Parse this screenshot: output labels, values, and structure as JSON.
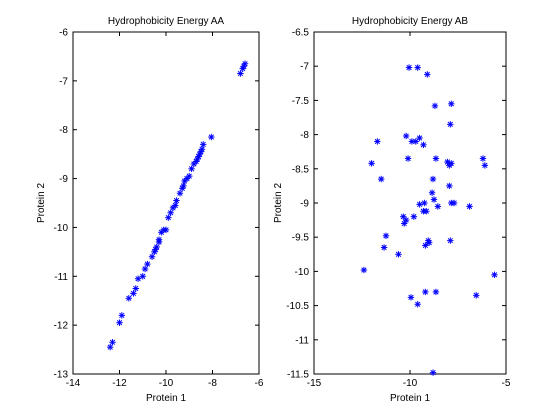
{
  "chart_data": [
    {
      "type": "scatter",
      "title": "Hydrophobicity Energy AA",
      "xlabel": "Protein 1",
      "ylabel": "Protein 2",
      "xlim": [
        -14,
        -6
      ],
      "ylim": [
        -13,
        -6
      ],
      "xticks": [
        "-14",
        "-12",
        "-10",
        "-8",
        "-6"
      ],
      "yticks": [
        "-13",
        "-12",
        "-11",
        "-10",
        "-9",
        "-8",
        "-7",
        "-6"
      ],
      "grid": false,
      "marker": "asterisk",
      "marker_color": "#0000ff",
      "series": [
        {
          "x": [
            -12.4,
            -12.3,
            -12.0,
            -11.9,
            -11.6,
            -11.4,
            -11.3,
            -11.2,
            -11.0,
            -10.9,
            -10.8,
            -10.6,
            -10.5,
            -10.45,
            -10.4,
            -10.3,
            -10.3,
            -10.2,
            -10.1,
            -10.0,
            -9.9,
            -9.8,
            -9.7,
            -9.6,
            -9.55,
            -9.4,
            -9.3,
            -9.25,
            -9.2,
            -9.1,
            -9.0,
            -8.9,
            -8.8,
            -8.7,
            -8.65,
            -8.6,
            -8.55,
            -8.5,
            -8.45,
            -8.4,
            -8.05,
            -6.8,
            -6.7,
            -6.65,
            -6.6
          ],
          "y": [
            -12.45,
            -12.35,
            -11.95,
            -11.8,
            -11.45,
            -11.35,
            -11.25,
            -11.05,
            -11.0,
            -10.85,
            -10.75,
            -10.6,
            -10.5,
            -10.45,
            -10.4,
            -10.3,
            -10.25,
            -10.1,
            -10.05,
            -10.05,
            -9.8,
            -9.7,
            -9.6,
            -9.55,
            -9.45,
            -9.3,
            -9.2,
            -9.15,
            -9.05,
            -9.0,
            -8.95,
            -8.8,
            -8.7,
            -8.65,
            -8.6,
            -8.55,
            -8.5,
            -8.45,
            -8.4,
            -8.3,
            -8.15,
            -6.85,
            -6.75,
            -6.7,
            -6.65
          ]
        }
      ]
    },
    {
      "type": "scatter",
      "title": "Hydrophobicity Energy AB",
      "xlabel": "Protein 1",
      "ylabel": "Protein 2",
      "xlim": [
        -15,
        -5
      ],
      "ylim": [
        -11.5,
        -6.5
      ],
      "xticks": [
        "-15",
        "-10",
        "-5"
      ],
      "yticks": [
        "-11.5",
        "-11",
        "-10.5",
        "-10",
        "-9.5",
        "-9",
        "-8.5",
        "-8",
        "-7.5",
        "-7",
        "-6.5"
      ],
      "grid": false,
      "marker": "asterisk",
      "marker_color": "#0000ff",
      "series": [
        {
          "x": [
            -10.05,
            -9.6,
            -9.1,
            -8.7,
            -7.85,
            -7.9,
            -10.2,
            -9.7,
            -9.5,
            -9.3,
            -11.7,
            -10.1,
            -9.9,
            -8.65,
            -8.05,
            -7.95,
            -7.85,
            -6.2,
            -6.1,
            -12.0,
            -11.5,
            -8.8,
            -7.95,
            -9.5,
            -9.25,
            -8.85,
            -8.75,
            -8.55,
            -7.85,
            -7.7,
            -6.9,
            -10.2,
            -9.8,
            -9.15,
            -10.35,
            -10.3,
            -9.3,
            -9.0,
            -11.25,
            -9.2,
            -9.05,
            -11.35,
            -10.6,
            -7.9,
            -12.4,
            -9.95,
            -9.6,
            -9.2,
            -8.65,
            -6.55,
            -5.6,
            -8.8
          ],
          "y": [
            -7.02,
            -7.02,
            -7.12,
            -7.58,
            -7.55,
            -7.85,
            -8.02,
            -8.1,
            -8.05,
            -8.15,
            -8.1,
            -8.35,
            -8.1,
            -8.35,
            -8.4,
            -8.45,
            -8.42,
            -8.35,
            -8.45,
            -8.42,
            -8.65,
            -8.65,
            -8.75,
            -9.02,
            -9.0,
            -8.85,
            -8.95,
            -9.05,
            -9.0,
            -9.0,
            -9.05,
            -9.25,
            -9.2,
            -9.12,
            -9.2,
            -9.3,
            -9.12,
            -9.58,
            -9.48,
            -9.62,
            -9.55,
            -9.65,
            -9.75,
            -9.55,
            -9.98,
            -10.38,
            -10.48,
            -10.3,
            -10.3,
            -10.35,
            -10.05,
            -11.48
          ]
        }
      ]
    }
  ]
}
